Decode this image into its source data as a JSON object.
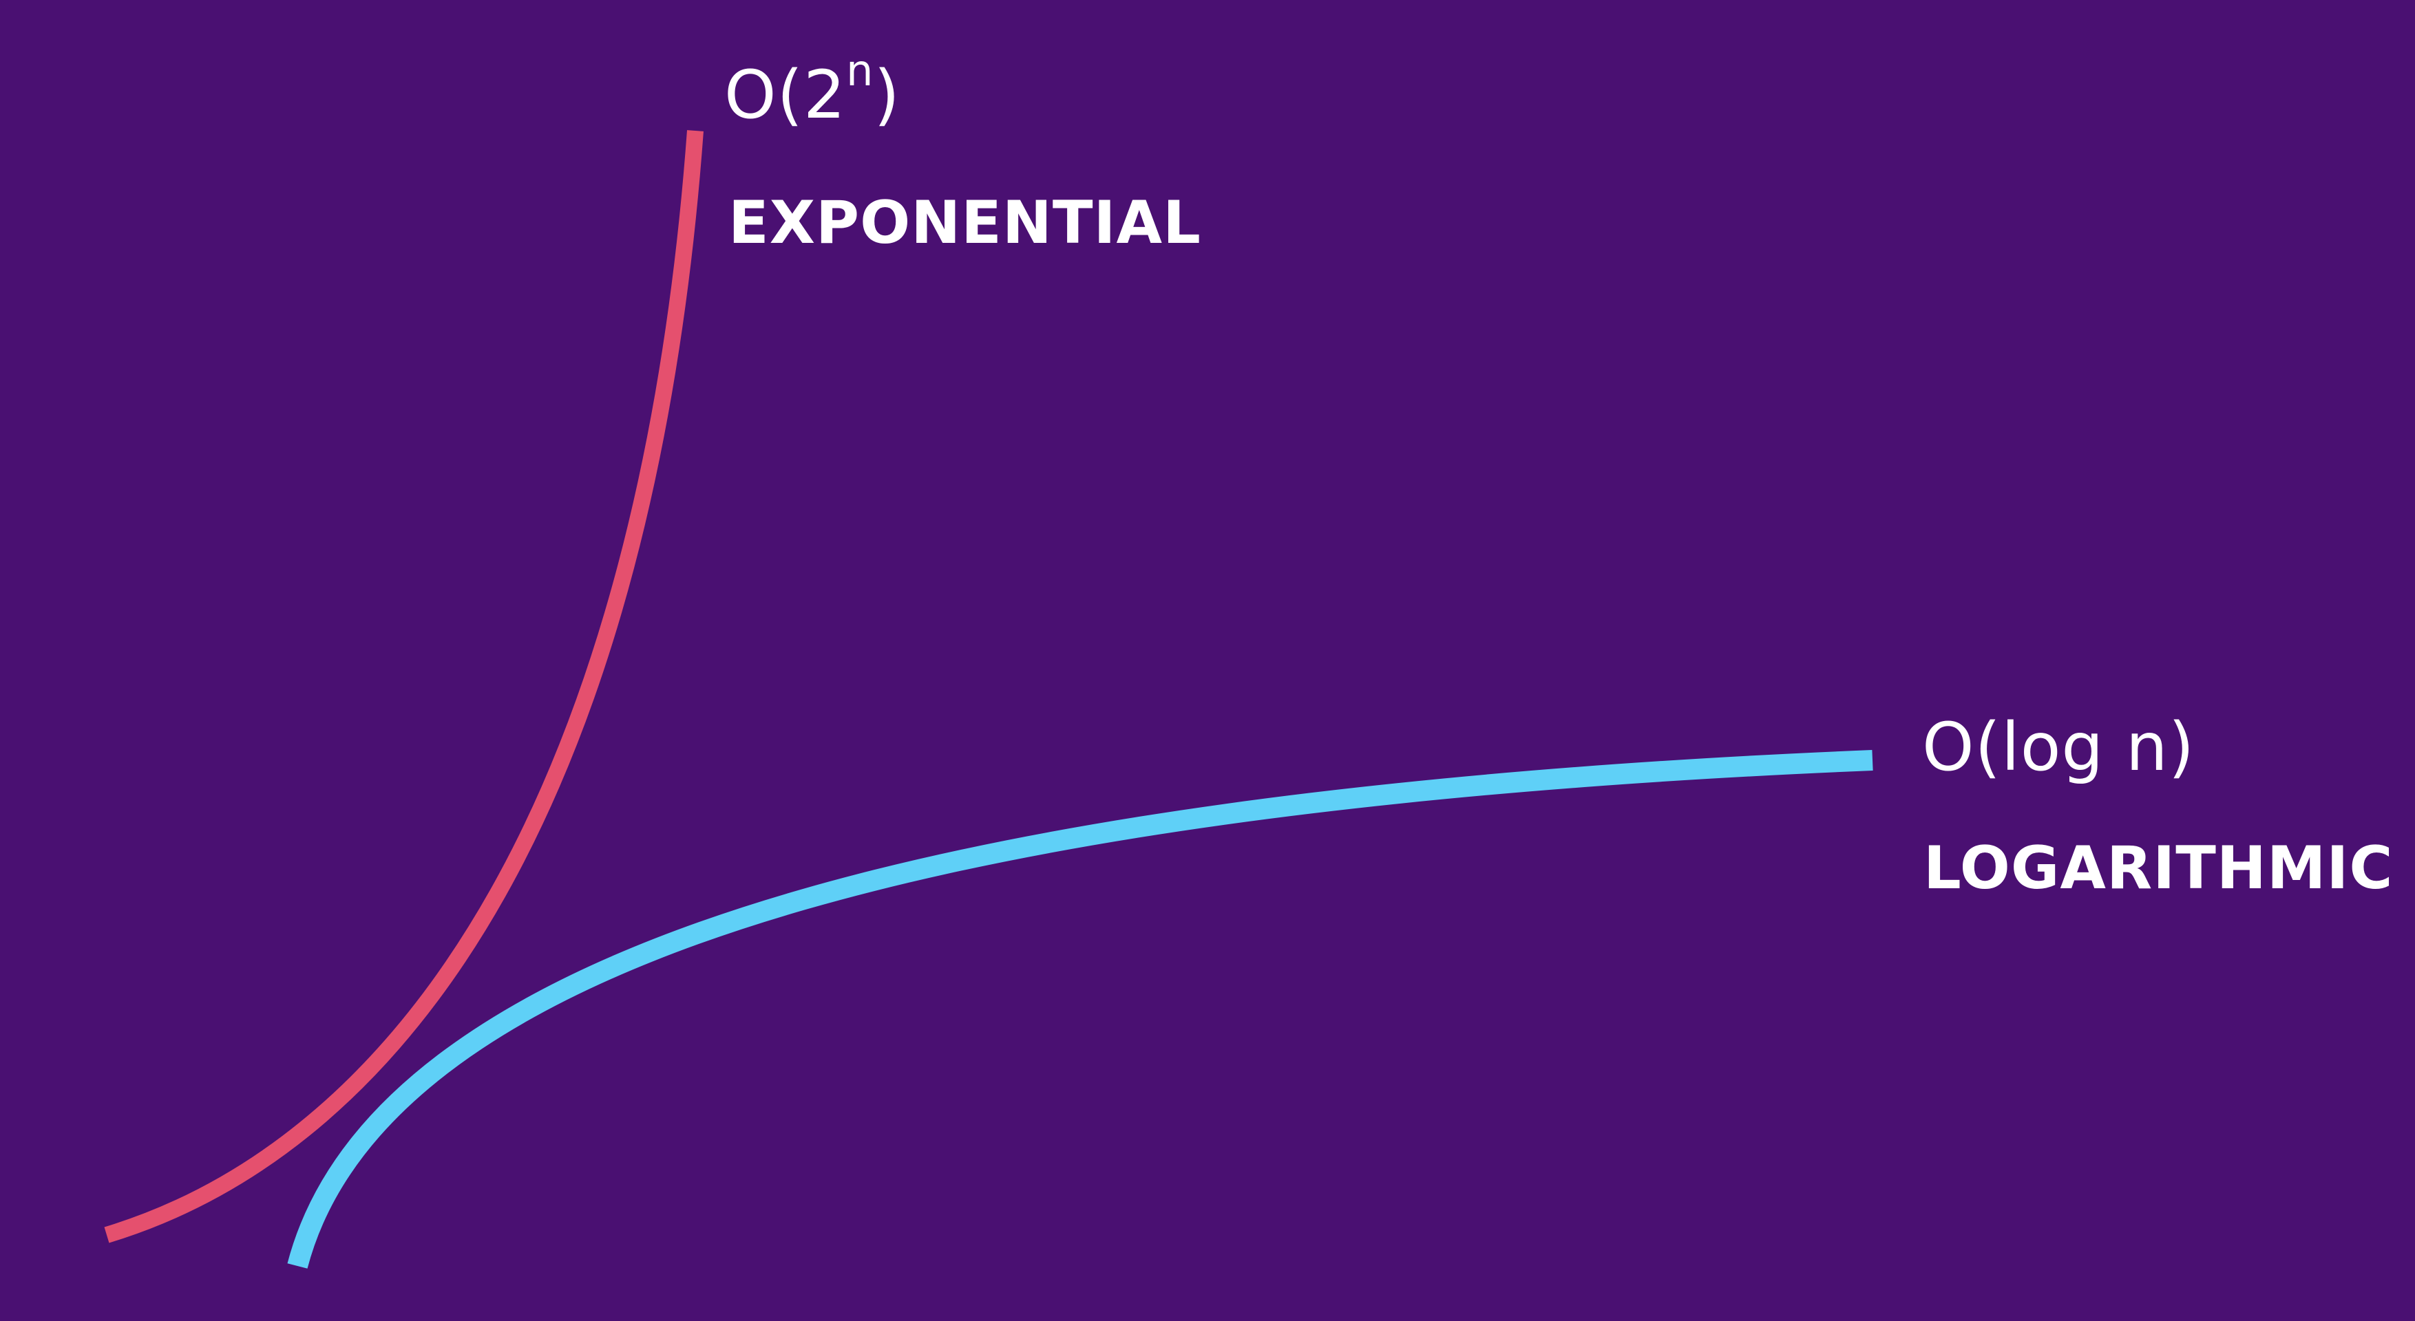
{
  "colors": {
    "background": "#4a1072",
    "exponential": "#e5506e",
    "logarithmic": "#5fd0f7",
    "text": "#ffffff"
  },
  "exponential": {
    "notation_prefix": "O(2",
    "notation_exponent": "n",
    "notation_suffix": ")",
    "name": "EXPONENTIAL"
  },
  "logarithmic": {
    "notation": "O(log n)",
    "name": "LOGARITHMIC"
  }
}
